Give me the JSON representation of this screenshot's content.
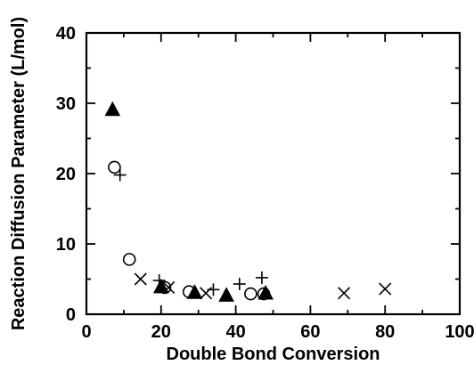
{
  "chart_data": {
    "type": "scatter",
    "title": "",
    "xlabel": "Double Bond Conversion",
    "ylabel": "Reaction Diffusion Parameter (L/mol)",
    "xlim": [
      0,
      100
    ],
    "ylim": [
      0,
      40
    ],
    "x_ticks": [
      0,
      20,
      40,
      60,
      80,
      100
    ],
    "y_ticks": [
      0,
      10,
      20,
      30,
      40
    ],
    "x_tick_labels": [
      "0",
      "20",
      "40",
      "60",
      "80",
      "100"
    ],
    "y_tick_labels": [
      "0",
      "10",
      "20",
      "30",
      "40"
    ],
    "grid": false,
    "legend": "none",
    "series": [
      {
        "marker": "filled-triangle",
        "points": [
          [
            7,
            29
          ],
          [
            20,
            3.8
          ],
          [
            29,
            3.0
          ],
          [
            37.5,
            2.6
          ],
          [
            48,
            2.9
          ]
        ]
      },
      {
        "marker": "open-circle",
        "points": [
          [
            7.5,
            20.9
          ],
          [
            11.5,
            7.8
          ],
          [
            21,
            3.8
          ],
          [
            27.5,
            3.2
          ],
          [
            44,
            2.9
          ],
          [
            47.5,
            2.9
          ]
        ]
      },
      {
        "marker": "plus",
        "points": [
          [
            9,
            19.8
          ],
          [
            19.5,
            4.8
          ],
          [
            34,
            3.5
          ],
          [
            41,
            4.3
          ],
          [
            47,
            5.2
          ]
        ]
      },
      {
        "marker": "cross",
        "points": [
          [
            14.5,
            5.0
          ],
          [
            22,
            3.8
          ],
          [
            32,
            3.0
          ],
          [
            69,
            3.0
          ],
          [
            80,
            3.6
          ]
        ]
      }
    ]
  }
}
